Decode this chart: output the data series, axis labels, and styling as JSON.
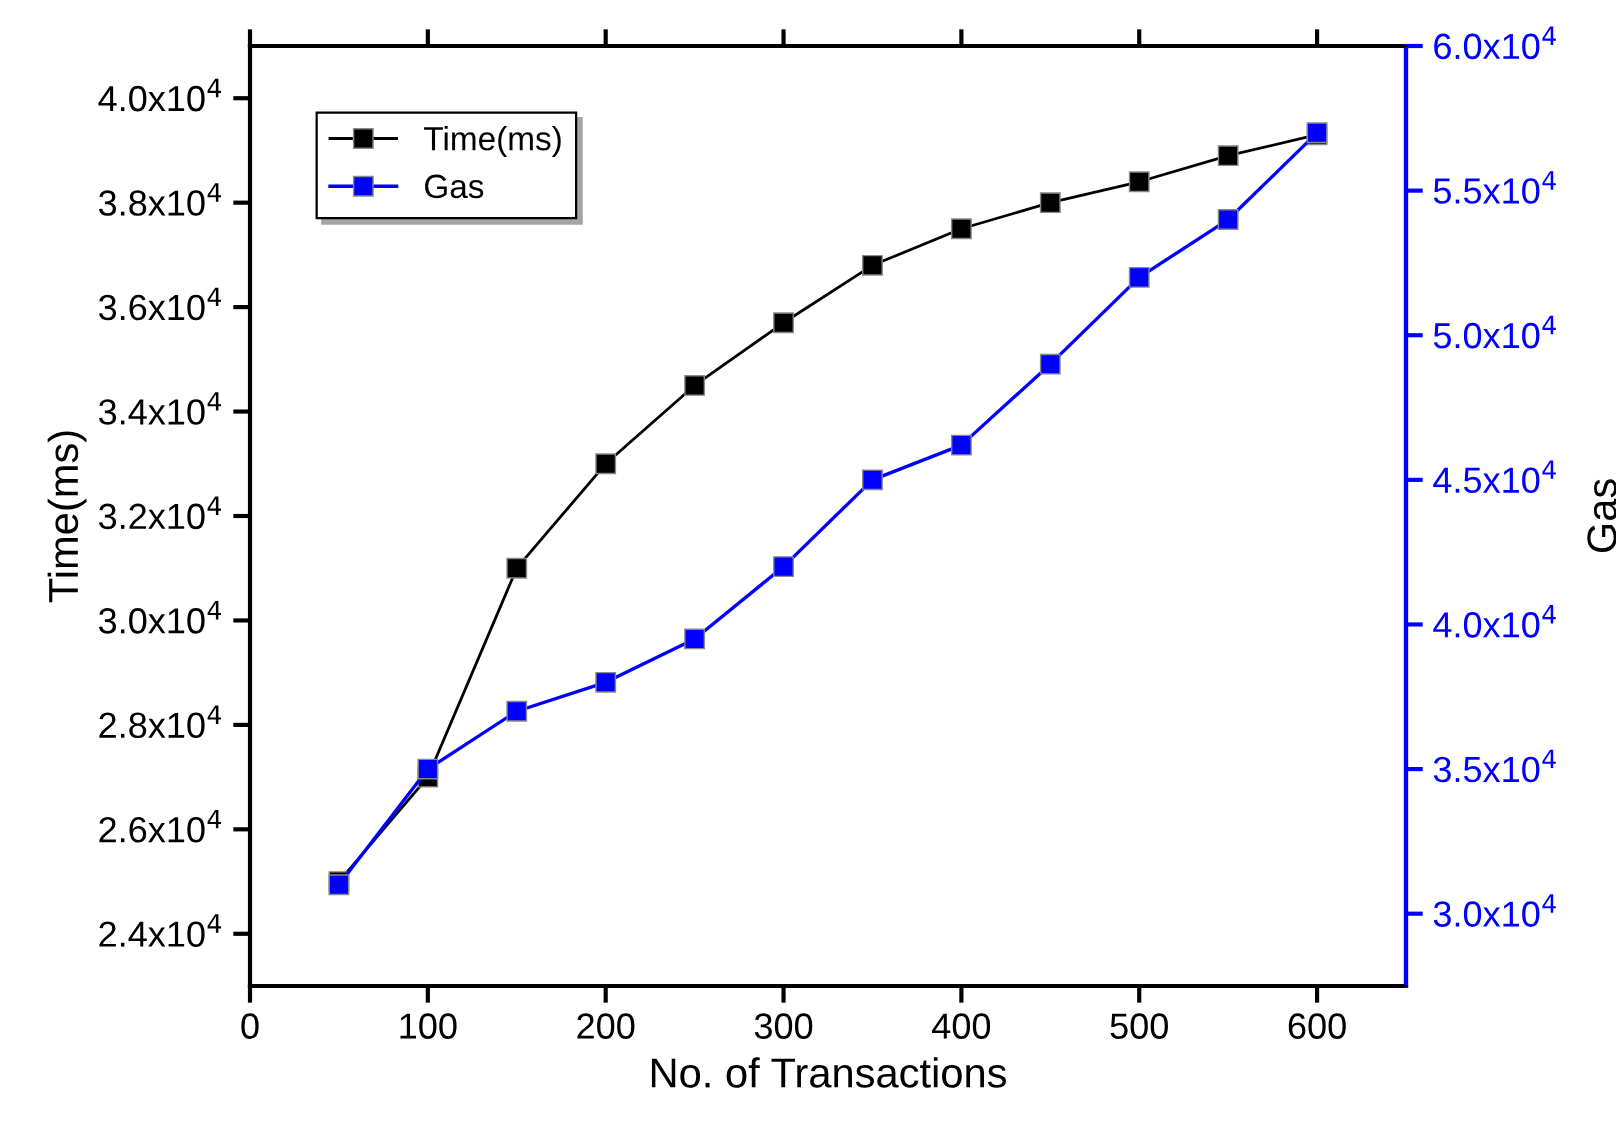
{
  "chart_data": {
    "type": "line",
    "xlabel": "No. of Transactions",
    "ylabel": "Time(ms)",
    "y2label": "Gas",
    "x": [
      50,
      100,
      150,
      200,
      250,
      300,
      350,
      400,
      450,
      500,
      550,
      600
    ],
    "series": [
      {
        "name": "Time(ms)",
        "color": "#000000",
        "values": [
          25000,
          27000,
          31000,
          33000,
          34500,
          35700,
          36800,
          37500,
          38000,
          38400,
          38900,
          39300
        ]
      },
      {
        "name": "Gas",
        "color": "#0000ff",
        "axis": "y2",
        "values": [
          31000,
          35000,
          37000,
          38000,
          39500,
          42000,
          45000,
          46200,
          49000,
          52000,
          54000,
          57000
        ]
      }
    ],
    "xlim": [
      0,
      650
    ],
    "xticks": [
      0,
      100,
      200,
      300,
      400,
      500,
      600
    ],
    "ylim": [
      23000,
      41000
    ],
    "yticks": [
      {
        "value": 24000,
        "label": "2.4x10$^{4}$"
      },
      {
        "value": 26000,
        "label": "2.6x10$^{4}$"
      },
      {
        "value": 28000,
        "label": "2.8x10$^{4}$"
      },
      {
        "value": 30000,
        "label": "3.0x10$^{4}$"
      },
      {
        "value": 32000,
        "label": "3.2x10$^{4}$"
      },
      {
        "value": 34000,
        "label": "3.4x10$^{4}$"
      },
      {
        "value": 36000,
        "label": "3.6x10$^{4}$"
      },
      {
        "value": 38000,
        "label": "3.8x10$^{4}$"
      },
      {
        "value": 40000,
        "label": "4.0x10$^{4}$"
      }
    ],
    "y2lim": [
      27500,
      60000
    ],
    "y2ticks": [
      {
        "value": 30000,
        "label": "3.0x10$^{4}$"
      },
      {
        "value": 35000,
        "label": "3.5x10$^{4}$"
      },
      {
        "value": 40000,
        "label": "4.0x10$^{4}$"
      },
      {
        "value": 45000,
        "label": "4.5x10$^{4}$"
      },
      {
        "value": 50000,
        "label": "5.0x10$^{4}$"
      },
      {
        "value": 55000,
        "label": "5.5x10$^{4}$"
      },
      {
        "value": 60000,
        "label": "6.0x10$^{4}$"
      }
    ],
    "marker": "square",
    "line_style": "solid",
    "legend": "top left",
    "grid": false
  }
}
